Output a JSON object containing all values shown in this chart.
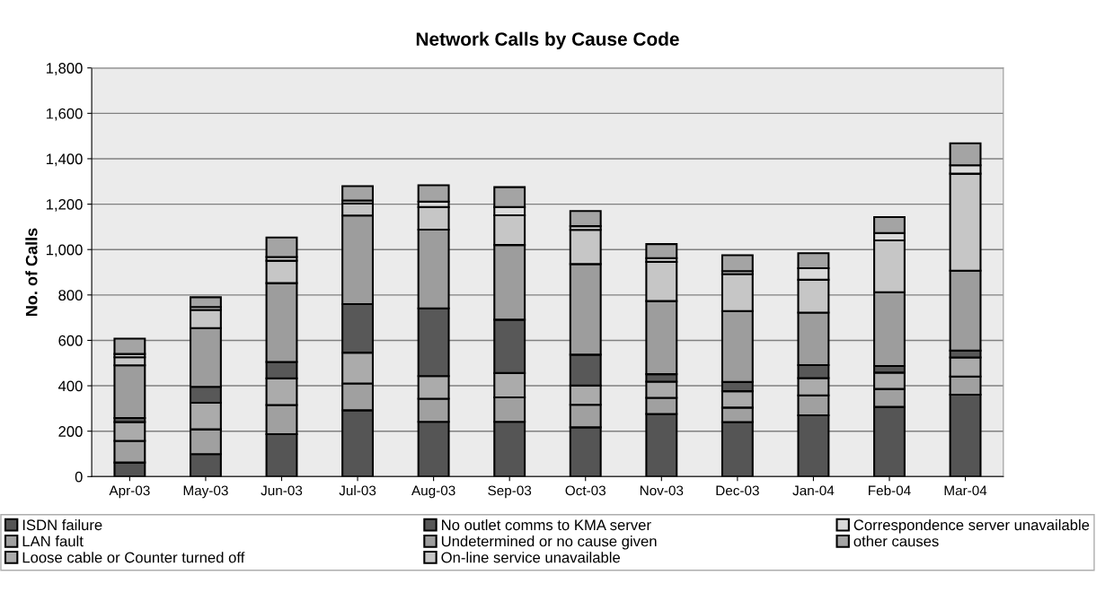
{
  "chart_data": {
    "type": "bar",
    "title": "Network Calls by Cause Code",
    "ylabel": "No. of Calls",
    "stacked": true,
    "categories": [
      "Apr-03",
      "May-03",
      "Jun-03",
      "Jul-03",
      "Aug-03",
      "Sep-03",
      "Oct-03",
      "Nov-03",
      "Dec-03",
      "Jan-04",
      "Feb-04",
      "Mar-04"
    ],
    "series": [
      {
        "name": "ISDN failure",
        "color": "#555555",
        "values": [
          62,
          99,
          187,
          292,
          241,
          241,
          217,
          276,
          240,
          270,
          307,
          361
        ]
      },
      {
        "name": "LAN fault",
        "color": "#a0a0a0",
        "values": [
          95,
          109,
          128,
          118,
          102,
          108,
          99,
          71,
          64,
          88,
          79,
          80
        ]
      },
      {
        "name": "Loose cable or Counter turned off",
        "color": "#ababab",
        "values": [
          83,
          117,
          118,
          136,
          100,
          107,
          85,
          71,
          72,
          76,
          72,
          84
        ]
      },
      {
        "name": "No outlet comms to KMA server",
        "color": "#585858",
        "values": [
          18,
          70,
          72,
          214,
          298,
          235,
          136,
          33,
          41,
          57,
          29,
          30
        ]
      },
      {
        "name": "Undetermined or no cause given",
        "color": "#9d9d9d",
        "values": [
          232,
          259,
          347,
          390,
          347,
          329,
          399,
          322,
          312,
          231,
          325,
          352
        ]
      },
      {
        "name": "On-line service unavailable",
        "color": "#c6c6c6",
        "values": [
          36,
          80,
          99,
          53,
          99,
          131,
          151,
          173,
          163,
          145,
          228,
          427
        ]
      },
      {
        "name": "Correspondence server unavailable",
        "color": "#dadada",
        "values": [
          14,
          13,
          16,
          13,
          24,
          36,
          16,
          16,
          13,
          51,
          33,
          37
        ]
      },
      {
        "name": "other causes",
        "color": "#a4a4a4",
        "values": [
          68,
          43,
          86,
          63,
          72,
          88,
          67,
          62,
          70,
          66,
          70,
          97
        ]
      }
    ],
    "ylim": [
      0,
      1800
    ],
    "yticks": [
      0,
      {
        "value": 200,
        "label": "200"
      },
      {
        "value": 400,
        "label": "400"
      },
      {
        "value": 600,
        "label": "600"
      },
      {
        "value": 800,
        "label": "800"
      },
      {
        "value": 1000,
        "label": "1,000"
      },
      {
        "value": 1200,
        "label": "1,200"
      },
      {
        "value": 1400,
        "label": "1,400"
      },
      {
        "value": 1600,
        "label": "1,600"
      },
      {
        "value": 1800,
        "label": "1,800"
      }
    ],
    "grid": "y",
    "legend": "bottom"
  }
}
